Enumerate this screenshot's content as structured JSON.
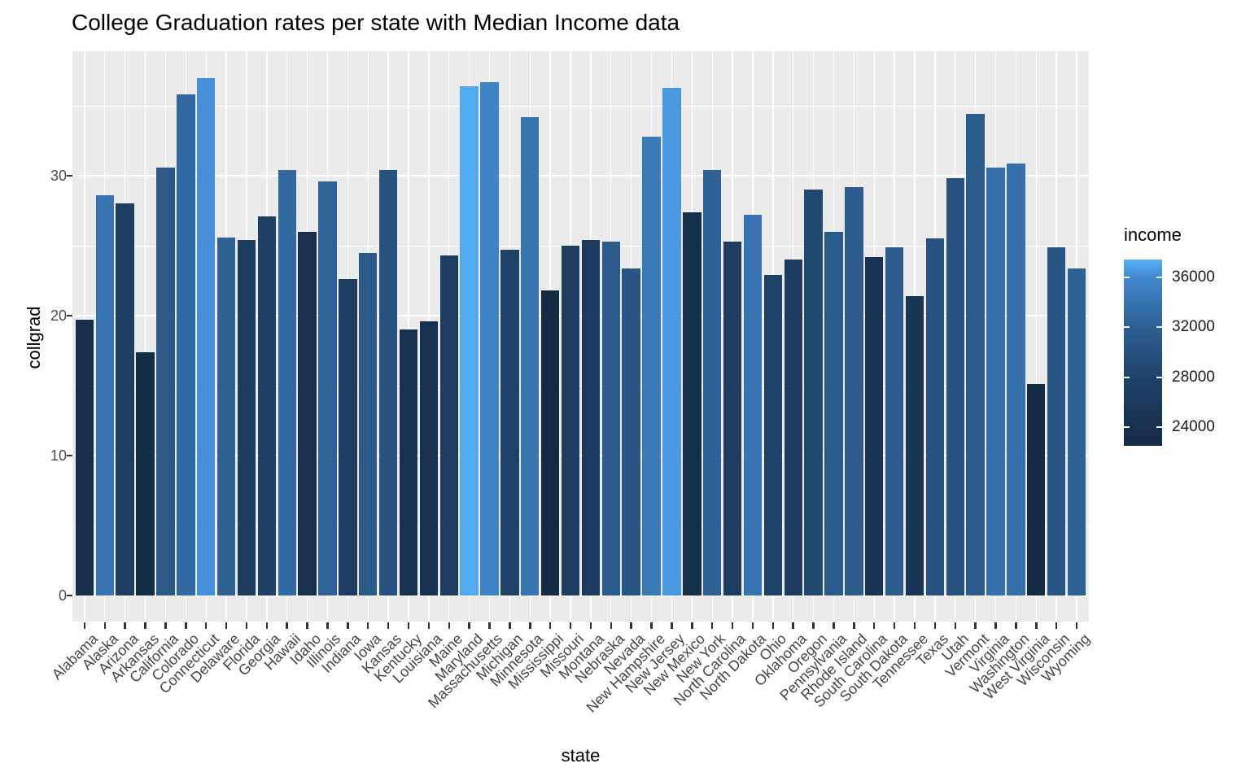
{
  "chart_data": {
    "type": "bar",
    "title": "College Graduation rates per state with Median Income data",
    "xlabel": "state",
    "ylabel": "collgrad",
    "y_axis": {
      "ticks": [
        0,
        10,
        20,
        30
      ],
      "minor_ticks": [
        5,
        15,
        25,
        35
      ],
      "range": [
        -1.9,
        38.9
      ],
      "grid": true
    },
    "legend": {
      "title": "income",
      "position": "right",
      "ticks": [
        24000,
        28000,
        32000,
        36000
      ],
      "domain": [
        22500,
        37450
      ]
    },
    "gradient_stops": [
      {
        "value": 22500,
        "color": "#132B43"
      },
      {
        "value": 24000,
        "color": "#17304F"
      },
      {
        "value": 28000,
        "color": "#1F4368"
      },
      {
        "value": 32000,
        "color": "#2D5F91"
      },
      {
        "value": 36000,
        "color": "#4088D0"
      },
      {
        "value": 37450,
        "color": "#56B1F7"
      }
    ],
    "colors": {
      "panel_background": "#EBEBEB",
      "gridline": "#FFFFFF",
      "axis_text": "#4D4D4D",
      "tick_mark": "#333333",
      "title_text": "#000000"
    },
    "states": [
      {
        "name": "Alabama",
        "collgrad": 19.7,
        "income": 23500
      },
      {
        "name": "Alaska",
        "collgrad": 28.6,
        "income": 34000
      },
      {
        "name": "Arizona",
        "collgrad": 28.0,
        "income": 26800
      },
      {
        "name": "Arkansas",
        "collgrad": 17.4,
        "income": 23000
      },
      {
        "name": "California",
        "collgrad": 30.6,
        "income": 31100
      },
      {
        "name": "Colorado",
        "collgrad": 35.8,
        "income": 33000
      },
      {
        "name": "Connecticut",
        "collgrad": 37.0,
        "income": 36300
      },
      {
        "name": "Delaware",
        "collgrad": 25.6,
        "income": 32200
      },
      {
        "name": "Florida",
        "collgrad": 25.4,
        "income": 26500
      },
      {
        "name": "Georgia",
        "collgrad": 27.1,
        "income": 27500
      },
      {
        "name": "Hawaii",
        "collgrad": 30.4,
        "income": 33000
      },
      {
        "name": "Idaho",
        "collgrad": 26.0,
        "income": 24000
      },
      {
        "name": "Illinois",
        "collgrad": 29.6,
        "income": 32400
      },
      {
        "name": "Indiana",
        "collgrad": 22.6,
        "income": 27000
      },
      {
        "name": "Iowa",
        "collgrad": 24.5,
        "income": 31300
      },
      {
        "name": "Kansas",
        "collgrad": 30.4,
        "income": 30000
      },
      {
        "name": "Kentucky",
        "collgrad": 19.0,
        "income": 24200
      },
      {
        "name": "Louisiana",
        "collgrad": 19.6,
        "income": 24000
      },
      {
        "name": "Maine",
        "collgrad": 24.3,
        "income": 26800
      },
      {
        "name": "Maryland",
        "collgrad": 36.4,
        "income": 37200
      },
      {
        "name": "Massachusetts",
        "collgrad": 36.7,
        "income": 35500
      },
      {
        "name": "Michigan",
        "collgrad": 24.7,
        "income": 28000
      },
      {
        "name": "Minnesota",
        "collgrad": 34.2,
        "income": 34100
      },
      {
        "name": "Mississippi",
        "collgrad": 21.8,
        "income": 22500
      },
      {
        "name": "Missouri",
        "collgrad": 25.0,
        "income": 26800
      },
      {
        "name": "Montana",
        "collgrad": 25.4,
        "income": 26200
      },
      {
        "name": "Nebraska",
        "collgrad": 25.3,
        "income": 31500
      },
      {
        "name": "Nevada",
        "collgrad": 23.4,
        "income": 30700
      },
      {
        "name": "New Hampshire",
        "collgrad": 32.8,
        "income": 34500
      },
      {
        "name": "New Jersey",
        "collgrad": 36.3,
        "income": 36600
      },
      {
        "name": "New Mexico",
        "collgrad": 27.4,
        "income": 23300
      },
      {
        "name": "New York",
        "collgrad": 30.4,
        "income": 32300
      },
      {
        "name": "North Carolina",
        "collgrad": 25.3,
        "income": 27000
      },
      {
        "name": "North Dakota",
        "collgrad": 27.2,
        "income": 34000
      },
      {
        "name": "Ohio",
        "collgrad": 22.9,
        "income": 28000
      },
      {
        "name": "Oklahoma",
        "collgrad": 24.0,
        "income": 26500
      },
      {
        "name": "Oregon",
        "collgrad": 29.0,
        "income": 28700
      },
      {
        "name": "Pennsylvania",
        "collgrad": 26.0,
        "income": 31300
      },
      {
        "name": "Rhode Island",
        "collgrad": 29.2,
        "income": 31700
      },
      {
        "name": "South Carolina",
        "collgrad": 24.2,
        "income": 24600
      },
      {
        "name": "South Dakota",
        "collgrad": 24.9,
        "income": 31500
      },
      {
        "name": "Tennessee",
        "collgrad": 21.4,
        "income": 25100
      },
      {
        "name": "Texas",
        "collgrad": 25.5,
        "income": 30200
      },
      {
        "name": "Utah",
        "collgrad": 29.8,
        "income": 30200
      },
      {
        "name": "Vermont",
        "collgrad": 34.4,
        "income": 31500
      },
      {
        "name": "Virginia",
        "collgrad": 30.6,
        "income": 33800
      },
      {
        "name": "Washington",
        "collgrad": 30.9,
        "income": 33700
      },
      {
        "name": "West Virginia",
        "collgrad": 15.1,
        "income": 22500
      },
      {
        "name": "Wisconsin",
        "collgrad": 24.9,
        "income": 30700
      },
      {
        "name": "Wyoming",
        "collgrad": 23.4,
        "income": 32200
      }
    ]
  }
}
